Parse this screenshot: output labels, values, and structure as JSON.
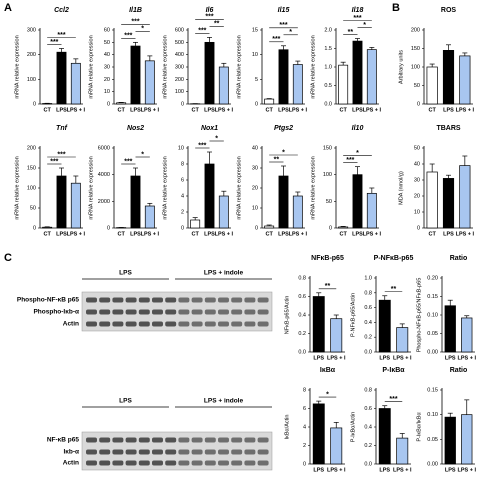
{
  "panels": [
    "A",
    "B",
    "C"
  ],
  "blots": [
    {
      "groups": [
        "LPS",
        "LPS + indole"
      ],
      "rows": [
        "Phospho-NF-κB p65",
        "Phospho-Iκb-α",
        "Actin"
      ]
    },
    {
      "groups": [
        "LPS",
        "LPS + indole"
      ],
      "rows": [
        "NF-κB p65",
        "Iκb-α",
        "Actin"
      ]
    }
  ],
  "chart_data": [
    {
      "type": "bar",
      "title": "Ccl2",
      "title_style": "italic",
      "y_label": "mRNA relative expression",
      "categories": [
        "CT",
        "LPS",
        "LPS + I"
      ],
      "colors": [
        "#ffffff",
        "#000000",
        "#a8c6f0"
      ],
      "values": [
        2,
        210,
        165
      ],
      "errors": [
        1,
        15,
        18
      ],
      "ylim": [
        0,
        300
      ],
      "yticks": [
        0,
        100,
        200,
        300
      ],
      "significance": [
        {
          "label": "***",
          "pair": [
            "CT",
            "LPS"
          ]
        },
        {
          "label": "***",
          "pair": [
            "CT",
            "LPS + I"
          ]
        }
      ]
    },
    {
      "type": "bar",
      "title": "Il1B",
      "title_style": "italic",
      "y_label": "mRNA relative expression",
      "categories": [
        "CT",
        "LPS",
        "LPS + I"
      ],
      "colors": [
        "#ffffff",
        "#000000",
        "#a8c6f0"
      ],
      "values": [
        1,
        47,
        35
      ],
      "errors": [
        0.3,
        3,
        4
      ],
      "ylim": [
        0,
        60
      ],
      "yticks": [
        0,
        10,
        20,
        30,
        40,
        50,
        60
      ],
      "significance": [
        {
          "label": "***",
          "pair": [
            "CT",
            "LPS"
          ]
        },
        {
          "label": "*",
          "pair": [
            "LPS",
            "LPS + I"
          ]
        },
        {
          "label": "***",
          "pair": [
            "CT",
            "LPS + I"
          ]
        }
      ]
    },
    {
      "type": "bar",
      "title": "Il6",
      "title_style": "italic",
      "y_label": "mRNA relative expression",
      "categories": [
        "CT",
        "LPS",
        "LPS + I"
      ],
      "colors": [
        "#ffffff",
        "#000000",
        "#a8c6f0"
      ],
      "values": [
        2,
        500,
        300
      ],
      "errors": [
        1,
        40,
        30
      ],
      "ylim": [
        0,
        600
      ],
      "yticks": [
        0,
        100,
        200,
        300,
        400,
        500,
        600
      ],
      "significance": [
        {
          "label": "***",
          "pair": [
            "CT",
            "LPS"
          ]
        },
        {
          "label": "**",
          "pair": [
            "LPS",
            "LPS + I"
          ]
        },
        {
          "label": "***",
          "pair": [
            "CT",
            "LPS + I"
          ]
        }
      ]
    },
    {
      "type": "bar",
      "title": "Il15",
      "title_style": "italic",
      "y_label": "mRNA relative expression",
      "categories": [
        "CT",
        "LPS",
        "LPS + I"
      ],
      "colors": [
        "#ffffff",
        "#000000",
        "#a8c6f0"
      ],
      "values": [
        1,
        11,
        8
      ],
      "errors": [
        0.1,
        0.8,
        0.7
      ],
      "ylim": [
        0,
        15
      ],
      "yticks": [
        0,
        5,
        10,
        15
      ],
      "significance": [
        {
          "label": "***",
          "pair": [
            "CT",
            "LPS"
          ]
        },
        {
          "label": "*",
          "pair": [
            "LPS",
            "LPS + I"
          ]
        },
        {
          "label": "***",
          "pair": [
            "CT",
            "LPS + I"
          ]
        }
      ]
    },
    {
      "type": "bar",
      "title": "Il18",
      "title_style": "italic",
      "y_label": "mRNA relative expression",
      "categories": [
        "CT",
        "LPS",
        "LPS + I"
      ],
      "colors": [
        "#ffffff",
        "#000000",
        "#a8c6f0"
      ],
      "values": [
        1.05,
        1.7,
        1.47
      ],
      "errors": [
        0.08,
        0.07,
        0.06
      ],
      "ylim": [
        0,
        2
      ],
      "yticks": [
        {
          "value": 0,
          "label": "0.0"
        },
        {
          "value": 0.5,
          "label": "0.5"
        },
        {
          "value": 1,
          "label": "1.0"
        },
        {
          "value": 1.5,
          "label": "1.5"
        },
        {
          "value": 2,
          "label": "2.0"
        }
      ],
      "significance": [
        {
          "label": "**",
          "pair": [
            "CT",
            "LPS"
          ]
        },
        {
          "label": "*",
          "pair": [
            "LPS",
            "LPS + I"
          ]
        },
        {
          "label": "***",
          "pair": [
            "CT",
            "LPS + I"
          ]
        }
      ]
    },
    {
      "type": "bar",
      "title": "ROS",
      "y_label": "Arbitrary units",
      "categories": [
        "CT",
        "LPS",
        "LPS + I"
      ],
      "colors": [
        "#ffffff",
        "#000000",
        "#a8c6f0"
      ],
      "values": [
        100,
        145,
        130
      ],
      "errors": [
        8,
        15,
        8
      ],
      "ylim": [
        0,
        200
      ],
      "yticks": [
        0,
        50,
        100,
        150,
        200
      ],
      "significance": []
    },
    {
      "type": "bar",
      "title": "Tnf",
      "title_style": "italic",
      "y_label": "mRNA relative expression",
      "categories": [
        "CT",
        "LPS",
        "LPS + I"
      ],
      "colors": [
        "#ffffff",
        "#000000",
        "#a8c6f0"
      ],
      "values": [
        2,
        130,
        112
      ],
      "errors": [
        1,
        20,
        18
      ],
      "ylim": [
        0,
        200
      ],
      "yticks": [
        0,
        50,
        100,
        150,
        200
      ],
      "significance": [
        {
          "label": "***",
          "pair": [
            "CT",
            "LPS"
          ]
        },
        {
          "label": "***",
          "pair": [
            "CT",
            "LPS + I"
          ]
        }
      ]
    },
    {
      "type": "bar",
      "title": "Nos2",
      "title_style": "italic",
      "y_label": "mRNA relative expression",
      "categories": [
        "CT",
        "LPS",
        "LPS + I"
      ],
      "colors": [
        "#ffffff",
        "#000000",
        "#a8c6f0"
      ],
      "values": [
        30,
        3900,
        1650
      ],
      "errors": [
        10,
        600,
        200
      ],
      "ylim": [
        0,
        6000
      ],
      "yticks": [
        0,
        2000,
        4000,
        6000
      ],
      "significance": [
        {
          "label": "***",
          "pair": [
            "CT",
            "LPS"
          ]
        },
        {
          "label": "*",
          "pair": [
            "LPS",
            "LPS + I"
          ]
        }
      ]
    },
    {
      "type": "bar",
      "title": "Nox1",
      "title_style": "italic",
      "y_label": "mRNA relative expression",
      "categories": [
        "CT",
        "LPS",
        "LPS + I"
      ],
      "colors": [
        "#ffffff",
        "#000000",
        "#a8c6f0"
      ],
      "values": [
        1,
        8,
        4
      ],
      "errors": [
        0.3,
        1.5,
        0.6
      ],
      "ylim": [
        0,
        10
      ],
      "yticks": [
        0,
        2,
        4,
        6,
        8,
        10
      ],
      "significance": [
        {
          "label": "***",
          "pair": [
            "CT",
            "LPS"
          ]
        },
        {
          "label": "*",
          "pair": [
            "LPS",
            "LPS + I"
          ]
        }
      ]
    },
    {
      "type": "bar",
      "title": "Ptgs2",
      "title_style": "italic",
      "y_label": "mRNA relative expression",
      "categories": [
        "CT",
        "LPS",
        "LPS + I"
      ],
      "colors": [
        "#ffffff",
        "#000000",
        "#a8c6f0"
      ],
      "values": [
        1,
        26,
        16
      ],
      "errors": [
        0.5,
        5,
        2
      ],
      "ylim": [
        0,
        40
      ],
      "yticks": [
        0,
        10,
        20,
        30,
        40
      ],
      "significance": [
        {
          "label": "**",
          "pair": [
            "CT",
            "LPS"
          ]
        },
        {
          "label": "*",
          "pair": [
            "CT",
            "LPS + I"
          ]
        }
      ]
    },
    {
      "type": "bar",
      "title": "Il10",
      "title_style": "italic",
      "y_label": "mRNA relative expression",
      "categories": [
        "CT",
        "LPS",
        "LPS + I"
      ],
      "colors": [
        "#ffffff",
        "#000000",
        "#a8c6f0"
      ],
      "values": [
        2,
        100,
        65
      ],
      "errors": [
        1,
        15,
        10
      ],
      "ylim": [
        0,
        150
      ],
      "yticks": [
        0,
        50,
        100,
        150
      ],
      "significance": [
        {
          "label": "***",
          "pair": [
            "CT",
            "LPS"
          ]
        },
        {
          "label": "*",
          "pair": [
            "CT",
            "LPS + I"
          ]
        }
      ]
    },
    {
      "type": "bar",
      "title": "TBARS",
      "y_label": "MDA (nmol/g)",
      "categories": [
        "CT",
        "LPS",
        "LPS + I"
      ],
      "colors": [
        "#ffffff",
        "#000000",
        "#a8c6f0"
      ],
      "values": [
        35,
        31,
        39
      ],
      "errors": [
        5,
        2,
        6
      ],
      "ylim": [
        0,
        50
      ],
      "yticks": [
        0,
        10,
        20,
        30,
        40,
        50
      ],
      "significance": []
    },
    {
      "type": "bar",
      "title": "NFκB-p65",
      "y_label": "NFκB-p65/Actin",
      "categories": [
        "LPS",
        "LPS + I"
      ],
      "colors": [
        "#000000",
        "#a8c6f0"
      ],
      "values": [
        0.6,
        0.36
      ],
      "errors": [
        0.04,
        0.04
      ],
      "ylim": [
        0,
        0.8
      ],
      "yticks": [
        {
          "value": 0,
          "label": "0.0"
        },
        {
          "value": 0.2,
          "label": "0.2"
        },
        {
          "value": 0.4,
          "label": "0.4"
        },
        {
          "value": 0.6,
          "label": "0.6"
        },
        {
          "value": 0.8,
          "label": "0.8"
        }
      ],
      "significance": [
        {
          "label": "**",
          "pair": [
            "LPS",
            "LPS + I"
          ]
        }
      ]
    },
    {
      "type": "bar",
      "title": "P-NFκB-p65",
      "y_label": "P-NFκB-p65/Actin",
      "categories": [
        "LPS",
        "LPS + I"
      ],
      "colors": [
        "#000000",
        "#a8c6f0"
      ],
      "values": [
        0.7,
        0.33
      ],
      "errors": [
        0.06,
        0.05
      ],
      "ylim": [
        0,
        1
      ],
      "yticks": [
        {
          "value": 0,
          "label": "0.0"
        },
        {
          "value": 0.2,
          "label": "0.2"
        },
        {
          "value": 0.4,
          "label": "0.4"
        },
        {
          "value": 0.6,
          "label": "0.6"
        },
        {
          "value": 0.8,
          "label": "0.8"
        },
        {
          "value": 1,
          "label": "1.0"
        }
      ],
      "significance": [
        {
          "label": "**",
          "pair": [
            "LPS",
            "LPS + I"
          ]
        }
      ]
    },
    {
      "type": "bar",
      "title": "Ratio",
      "y_label": "Phospho-NFκB-p65/NFκB-p65",
      "categories": [
        "LPS",
        "LPS + I"
      ],
      "colors": [
        "#000000",
        "#a8c6f0"
      ],
      "values": [
        0.125,
        0.092
      ],
      "errors": [
        0.015,
        0.006
      ],
      "ylim": [
        0,
        0.2
      ],
      "yticks": [
        {
          "value": 0,
          "label": "0.00"
        },
        {
          "value": 0.05,
          "label": "0.05"
        },
        {
          "value": 0.1,
          "label": "0.10"
        },
        {
          "value": 0.15,
          "label": "0.15"
        },
        {
          "value": 0.2,
          "label": "0.20"
        }
      ],
      "significance": []
    },
    {
      "type": "bar",
      "title": "IκBα",
      "y_label": "IκBα/Actin",
      "categories": [
        "LPS",
        "LPS + I"
      ],
      "colors": [
        "#000000",
        "#a8c6f0"
      ],
      "values": [
        6.5,
        3.9
      ],
      "errors": [
        0.3,
        0.6
      ],
      "ylim": [
        0,
        8
      ],
      "yticks": [
        0,
        2,
        4,
        6,
        8
      ],
      "significance": [
        {
          "label": "*",
          "pair": [
            "LPS",
            "LPS + I"
          ]
        }
      ]
    },
    {
      "type": "bar",
      "title": "P-IκBα",
      "y_label": "P-IκBα/Actin",
      "categories": [
        "LPS",
        "LPS + I"
      ],
      "colors": [
        "#000000",
        "#a8c6f0"
      ],
      "values": [
        0.6,
        0.28
      ],
      "errors": [
        0.03,
        0.05
      ],
      "ylim": [
        0,
        0.8
      ],
      "yticks": [
        {
          "value": 0,
          "label": "0.0"
        },
        {
          "value": 0.2,
          "label": "0.2"
        },
        {
          "value": 0.4,
          "label": "0.4"
        },
        {
          "value": 0.6,
          "label": "0.6"
        },
        {
          "value": 0.8,
          "label": "0.8"
        }
      ],
      "significance": [
        {
          "label": "***",
          "pair": [
            "LPS",
            "LPS + I"
          ]
        }
      ]
    },
    {
      "type": "bar",
      "title": "Ratio",
      "y_label": "P-IκBα/IκBα",
      "categories": [
        "LPS",
        "LPS + I"
      ],
      "colors": [
        "#000000",
        "#a8c6f0"
      ],
      "values": [
        0.095,
        0.1
      ],
      "errors": [
        0.008,
        0.03
      ],
      "ylim": [
        0,
        0.15
      ],
      "yticks": [
        {
          "value": 0,
          "label": "0.00"
        },
        {
          "value": 0.05,
          "label": "0.05"
        },
        {
          "value": 0.1,
          "label": "0.10"
        },
        {
          "value": 0.15,
          "label": "0.15"
        }
      ],
      "significance": []
    }
  ]
}
